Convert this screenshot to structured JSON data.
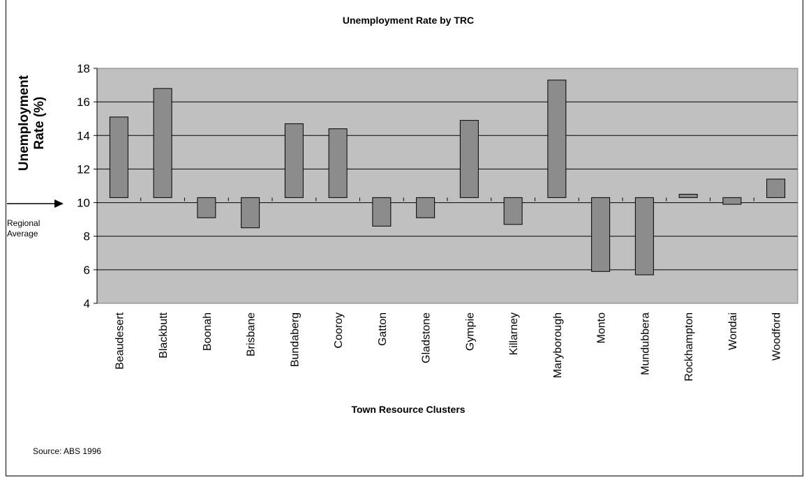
{
  "chart_data": {
    "type": "bar",
    "title": "Unemployment Rate by TRC",
    "xlabel": "Town Resource Clusters",
    "ylabel": "Unemployment Rate (%)",
    "ylim": [
      4,
      18
    ],
    "yticks": [
      4,
      6,
      8,
      10,
      12,
      14,
      16,
      18
    ],
    "grid": true,
    "baseline": 10.3,
    "categories": [
      "Beaudesert",
      "Blackbutt",
      "Boonah",
      "Brisbane",
      "Bundaberg",
      "Cooroy",
      "Gatton",
      "Gladstone",
      "Gympie",
      "Killarney",
      "Maryborough",
      "Monto",
      "Mundubbera",
      "Rockhampton",
      "Wondai",
      "Woodford"
    ],
    "values": [
      15.1,
      16.8,
      9.1,
      8.5,
      14.7,
      14.4,
      8.6,
      9.1,
      14.9,
      8.7,
      17.3,
      5.9,
      5.7,
      10.5,
      9.9,
      11.4
    ],
    "bar_color": "#8c8c8c",
    "plot_background": "#c0c0c0",
    "annotation": "Regional Average",
    "source": "Source: ABS 1996"
  }
}
